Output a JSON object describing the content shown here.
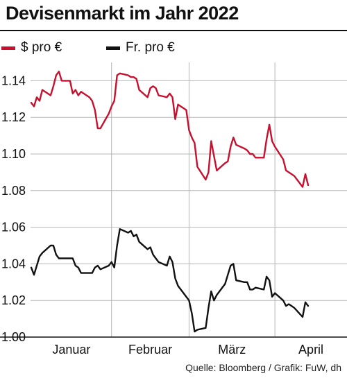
{
  "header": {
    "title": "Devisenmarkt im Jahr 2022"
  },
  "source": "Quelle: Bloomberg / Grafik: FuW, dh",
  "colors": {
    "usd": "#c8102e",
    "chf": "#111111",
    "grid": "#b5b5b5",
    "axis": "#111111"
  },
  "chart_data": {
    "type": "line",
    "title": "Devisenmarkt im Jahr 2022",
    "xlabel": "",
    "ylabel": "",
    "ylim": [
      1.0,
      1.15
    ],
    "yticks": [
      1.0,
      1.02,
      1.04,
      1.06,
      1.08,
      1.1,
      1.12,
      1.14
    ],
    "xlim": [
      "2022-01-03",
      "2022-04-12"
    ],
    "x_tick_labels": [
      "Januar",
      "Februar",
      "März",
      "April"
    ],
    "x_month_boundaries": [
      "2022-02-01",
      "2022-03-01",
      "2022-04-01"
    ],
    "grid": true,
    "legend_position": "top-left",
    "series": [
      {
        "name": "$ pro €",
        "color": "#c8102e",
        "points": [
          [
            "2022-01-03",
            1.128
          ],
          [
            "2022-01-04",
            1.126
          ],
          [
            "2022-01-05",
            1.131
          ],
          [
            "2022-01-06",
            1.129
          ],
          [
            "2022-01-07",
            1.135
          ],
          [
            "2022-01-10",
            1.132
          ],
          [
            "2022-01-11",
            1.137
          ],
          [
            "2022-01-12",
            1.143
          ],
          [
            "2022-01-13",
            1.145
          ],
          [
            "2022-01-14",
            1.14
          ],
          [
            "2022-01-17",
            1.14
          ],
          [
            "2022-01-18",
            1.133
          ],
          [
            "2022-01-19",
            1.135
          ],
          [
            "2022-01-20",
            1.132
          ],
          [
            "2022-01-21",
            1.134
          ],
          [
            "2022-01-24",
            1.131
          ],
          [
            "2022-01-25",
            1.129
          ],
          [
            "2022-01-26",
            1.124
          ],
          [
            "2022-01-27",
            1.114
          ],
          [
            "2022-01-28",
            1.114
          ],
          [
            "2022-01-31",
            1.122
          ],
          [
            "2022-02-01",
            1.126
          ],
          [
            "2022-02-02",
            1.129
          ],
          [
            "2022-02-03",
            1.143
          ],
          [
            "2022-02-04",
            1.144
          ],
          [
            "2022-02-07",
            1.143
          ],
          [
            "2022-02-08",
            1.142
          ],
          [
            "2022-02-09",
            1.142
          ],
          [
            "2022-02-10",
            1.141
          ],
          [
            "2022-02-11",
            1.135
          ],
          [
            "2022-02-14",
            1.131
          ],
          [
            "2022-02-15",
            1.136
          ],
          [
            "2022-02-16",
            1.137
          ],
          [
            "2022-02-17",
            1.136
          ],
          [
            "2022-02-18",
            1.132
          ],
          [
            "2022-02-21",
            1.131
          ],
          [
            "2022-02-22",
            1.133
          ],
          [
            "2022-02-23",
            1.131
          ],
          [
            "2022-02-24",
            1.119
          ],
          [
            "2022-02-25",
            1.127
          ],
          [
            "2022-02-28",
            1.124
          ],
          [
            "2022-03-01",
            1.113
          ],
          [
            "2022-03-02",
            1.109
          ],
          [
            "2022-03-03",
            1.106
          ],
          [
            "2022-03-04",
            1.093
          ],
          [
            "2022-03-07",
            1.086
          ],
          [
            "2022-03-08",
            1.09
          ],
          [
            "2022-03-09",
            1.107
          ],
          [
            "2022-03-10",
            1.099
          ],
          [
            "2022-03-11",
            1.091
          ],
          [
            "2022-03-14",
            1.095
          ],
          [
            "2022-03-15",
            1.096
          ],
          [
            "2022-03-16",
            1.104
          ],
          [
            "2022-03-17",
            1.109
          ],
          [
            "2022-03-18",
            1.105
          ],
          [
            "2022-03-21",
            1.103
          ],
          [
            "2022-03-22",
            1.102
          ],
          [
            "2022-03-23",
            1.1
          ],
          [
            "2022-03-24",
            1.1
          ],
          [
            "2022-03-25",
            1.098
          ],
          [
            "2022-03-28",
            1.098
          ],
          [
            "2022-03-29",
            1.108
          ],
          [
            "2022-03-30",
            1.116
          ],
          [
            "2022-03-31",
            1.107
          ],
          [
            "2022-04-01",
            1.104
          ],
          [
            "2022-04-04",
            1.097
          ],
          [
            "2022-04-05",
            1.091
          ],
          [
            "2022-04-06",
            1.09
          ],
          [
            "2022-04-07",
            1.089
          ],
          [
            "2022-04-08",
            1.088
          ],
          [
            "2022-04-11",
            1.082
          ],
          [
            "2022-04-12",
            1.089
          ],
          [
            "2022-04-13",
            1.083
          ]
        ]
      },
      {
        "name": "Fr. pro €",
        "color": "#111111",
        "points": [
          [
            "2022-01-03",
            1.038
          ],
          [
            "2022-01-04",
            1.034
          ],
          [
            "2022-01-05",
            1.039
          ],
          [
            "2022-01-06",
            1.044
          ],
          [
            "2022-01-07",
            1.046
          ],
          [
            "2022-01-10",
            1.05
          ],
          [
            "2022-01-11",
            1.05
          ],
          [
            "2022-01-12",
            1.045
          ],
          [
            "2022-01-13",
            1.043
          ],
          [
            "2022-01-14",
            1.043
          ],
          [
            "2022-01-17",
            1.043
          ],
          [
            "2022-01-18",
            1.043
          ],
          [
            "2022-01-19",
            1.039
          ],
          [
            "2022-01-20",
            1.038
          ],
          [
            "2022-01-21",
            1.035
          ],
          [
            "2022-01-24",
            1.035
          ],
          [
            "2022-01-25",
            1.035
          ],
          [
            "2022-01-26",
            1.038
          ],
          [
            "2022-01-27",
            1.039
          ],
          [
            "2022-01-28",
            1.037
          ],
          [
            "2022-01-31",
            1.039
          ],
          [
            "2022-02-01",
            1.041
          ],
          [
            "2022-02-02",
            1.038
          ],
          [
            "2022-02-03",
            1.05
          ],
          [
            "2022-02-04",
            1.059
          ],
          [
            "2022-02-07",
            1.057
          ],
          [
            "2022-02-08",
            1.058
          ],
          [
            "2022-02-09",
            1.055
          ],
          [
            "2022-02-10",
            1.056
          ],
          [
            "2022-02-11",
            1.052
          ],
          [
            "2022-02-14",
            1.048
          ],
          [
            "2022-02-15",
            1.049
          ],
          [
            "2022-02-16",
            1.045
          ],
          [
            "2022-02-17",
            1.043
          ],
          [
            "2022-02-18",
            1.041
          ],
          [
            "2022-02-21",
            1.039
          ],
          [
            "2022-02-22",
            1.044
          ],
          [
            "2022-02-23",
            1.041
          ],
          [
            "2022-02-24",
            1.032
          ],
          [
            "2022-02-25",
            1.028
          ],
          [
            "2022-02-28",
            1.022
          ],
          [
            "2022-03-01",
            1.02
          ],
          [
            "2022-03-02",
            1.013
          ],
          [
            "2022-03-03",
            1.003
          ],
          [
            "2022-03-04",
            1.004
          ],
          [
            "2022-03-07",
            1.005
          ],
          [
            "2022-03-08",
            1.016
          ],
          [
            "2022-03-09",
            1.025
          ],
          [
            "2022-03-10",
            1.02
          ],
          [
            "2022-03-11",
            1.023
          ],
          [
            "2022-03-14",
            1.029
          ],
          [
            "2022-03-15",
            1.034
          ],
          [
            "2022-03-16",
            1.039
          ],
          [
            "2022-03-17",
            1.04
          ],
          [
            "2022-03-18",
            1.031
          ],
          [
            "2022-03-21",
            1.03
          ],
          [
            "2022-03-22",
            1.03
          ],
          [
            "2022-03-23",
            1.026
          ],
          [
            "2022-03-24",
            1.026
          ],
          [
            "2022-03-25",
            1.027
          ],
          [
            "2022-03-28",
            1.026
          ],
          [
            "2022-03-29",
            1.033
          ],
          [
            "2022-03-30",
            1.031
          ],
          [
            "2022-03-31",
            1.022
          ],
          [
            "2022-04-01",
            1.024
          ],
          [
            "2022-04-04",
            1.02
          ],
          [
            "2022-04-05",
            1.017
          ],
          [
            "2022-04-06",
            1.018
          ],
          [
            "2022-04-07",
            1.017
          ],
          [
            "2022-04-08",
            1.016
          ],
          [
            "2022-04-11",
            1.011
          ],
          [
            "2022-04-12",
            1.019
          ],
          [
            "2022-04-13",
            1.017
          ]
        ]
      }
    ]
  }
}
